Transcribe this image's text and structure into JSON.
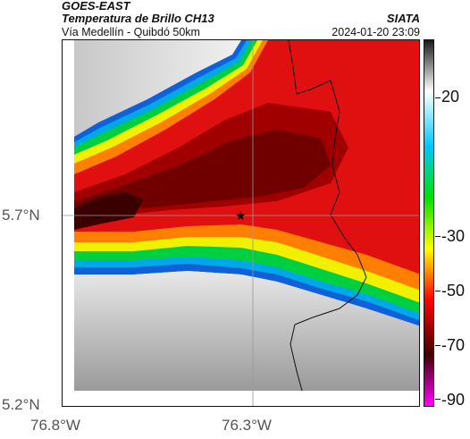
{
  "header": {
    "satellite": "GOES-EAST",
    "product": "Temperatura de Brillo CH13",
    "area": "Vía Medellín - Quibdó 50km",
    "agency": "SIATA",
    "datetime": "2024-01-20 23:09"
  },
  "axes": {
    "lat_labels": [
      "5.7°N",
      "5.2°N"
    ],
    "lon_labels": [
      "76.8°W",
      "76.3°W"
    ]
  },
  "colorbar": {
    "labels": [
      "20",
      "-30",
      "-50",
      "-70",
      "-90"
    ],
    "stops": [
      {
        "color": "#1a1a1a",
        "label": ""
      },
      {
        "color": "#ffffff",
        "label": ""
      },
      {
        "color": "#00c8ff",
        "label": ""
      },
      {
        "color": "#00e000",
        "label": ""
      },
      {
        "color": "#ffff00",
        "label": ""
      },
      {
        "color": "#ff0000",
        "label": ""
      },
      {
        "color": "#400000",
        "label": ""
      },
      {
        "color": "#ff00ff",
        "label": ""
      }
    ]
  },
  "map": {
    "marker": "star-icon",
    "colors": {
      "cold_cloud": "#7a0000",
      "warm_ground": "#b0b0b0"
    }
  }
}
